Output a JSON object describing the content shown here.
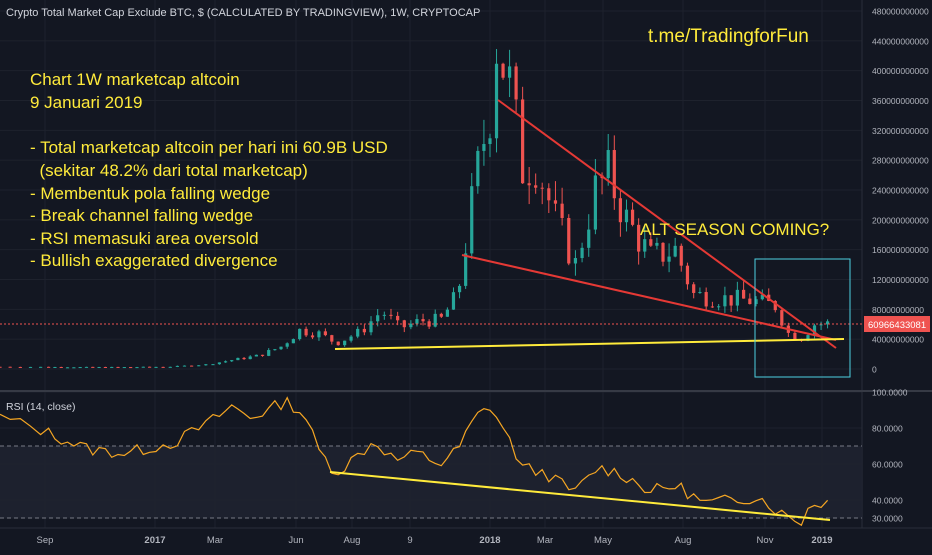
{
  "header": {
    "title": "Crypto Total Market Cap Exclude BTC, $ (CALCULATED BY TRADINGVIEW), 1W, CRYPTOCAP"
  },
  "watermark": "t.me/TradingforFun",
  "annotation_lines": [
    "Chart 1W marketcap altcoin",
    "9 Januari 2019",
    "",
    "- Total marketcap altcoin per hari ini 60.9B USD",
    "  (sekitar 48.2% dari total marketcap)",
    "- Membentuk pola falling wedge",
    "- Break channel falling wedge",
    "- RSI memasuki area oversold",
    "- Bullish exaggerated divergence"
  ],
  "callout": "ALT SEASON COMING?",
  "price_label": "60966433081",
  "rsi_label": "RSI (14, close)",
  "colors": {
    "background": "#131722",
    "up": "#26a69a",
    "down": "#ef5350",
    "annotation": "#ffeb3b",
    "wedge": "#e53935",
    "rsi_line": "#f5a623",
    "highlight_box": "#4dd0e1"
  },
  "chart_data": [
    {
      "type": "candlestick",
      "title": "Crypto Total Market Cap Exclude BTC, $ (CALCULATED BY TRADINGVIEW), 1W, CRYPTOCAP",
      "x_tick_labels": [
        "Sep",
        "2017",
        "Mar",
        "Jun",
        "Aug",
        "9",
        "2018",
        "Mar",
        "May",
        "Aug",
        "Nov",
        "2019"
      ],
      "y_tick_labels": [
        "480000000000",
        "440000000000",
        "400000000000",
        "360000000000",
        "320000000000",
        "280000000000",
        "240000000000",
        "200000000000",
        "160000000000",
        "120000000000",
        "80000000000",
        "40000000000",
        "0"
      ],
      "ylim": [
        0,
        480000000000
      ],
      "y_scale": "linear",
      "grid": true,
      "last_value": 60966433081,
      "price_waypoints": [
        {
          "date": "2016-08-01",
          "value": 3000000000
        },
        {
          "date": "2016-10-01",
          "value": 2500000000
        },
        {
          "date": "2016-12-01",
          "value": 2500000000
        },
        {
          "date": "2017-01-15",
          "value": 3000000000
        },
        {
          "date": "2017-02-20",
          "value": 6000000000
        },
        {
          "date": "2017-03-20",
          "value": 12000000000
        },
        {
          "date": "2017-04-20",
          "value": 18000000000
        },
        {
          "date": "2017-05-15",
          "value": 30000000000
        },
        {
          "date": "2017-06-05",
          "value": 52000000000
        },
        {
          "date": "2017-06-25",
          "value": 48000000000
        },
        {
          "date": "2017-07-15",
          "value": 35000000000
        },
        {
          "date": "2017-08-10",
          "value": 50000000000
        },
        {
          "date": "2017-09-01",
          "value": 78000000000
        },
        {
          "date": "2017-09-20",
          "value": 55000000000
        },
        {
          "date": "2017-10-15",
          "value": 65000000000
        },
        {
          "date": "2017-11-05",
          "value": 65000000000
        },
        {
          "date": "2017-11-25",
          "value": 100000000000
        },
        {
          "date": "2017-12-15",
          "value": 250000000000
        },
        {
          "date": "2018-01-01",
          "value": 350000000000
        },
        {
          "date": "2018-01-08",
          "value": 440000000000
        },
        {
          "date": "2018-01-22",
          "value": 380000000000
        },
        {
          "date": "2018-02-05",
          "value": 270000000000
        },
        {
          "date": "2018-02-19",
          "value": 280000000000
        },
        {
          "date": "2018-03-12",
          "value": 200000000000
        },
        {
          "date": "2018-04-02",
          "value": 140000000000
        },
        {
          "date": "2018-04-23",
          "value": 240000000000
        },
        {
          "date": "2018-05-07",
          "value": 260000000000
        },
        {
          "date": "2018-05-28",
          "value": 200000000000
        },
        {
          "date": "2018-06-25",
          "value": 150000000000
        },
        {
          "date": "2018-07-23",
          "value": 160000000000
        },
        {
          "date": "2018-08-13",
          "value": 100000000000
        },
        {
          "date": "2018-09-10",
          "value": 95000000000
        },
        {
          "date": "2018-10-15",
          "value": 92000000000
        },
        {
          "date": "2018-11-12",
          "value": 85000000000
        },
        {
          "date": "2018-11-26",
          "value": 48000000000
        },
        {
          "date": "2018-12-10",
          "value": 42000000000
        },
        {
          "date": "2018-12-24",
          "value": 60000000000
        },
        {
          "date": "2019-01-07",
          "value": 60966433081
        }
      ]
    },
    {
      "type": "line",
      "title": "RSI (14, close)",
      "y_tick_labels": [
        "100.0000",
        "80.0000",
        "60.0000",
        "40.0000",
        "30.0000"
      ],
      "ylim": [
        25,
        100
      ],
      "reference_lines": [
        70,
        30
      ],
      "rsi_waypoints": [
        {
          "date": "2016-08-01",
          "value": 86
        },
        {
          "date": "2016-09-10",
          "value": 76
        },
        {
          "date": "2016-10-20",
          "value": 68
        },
        {
          "date": "2016-12-01",
          "value": 66
        },
        {
          "date": "2017-01-20",
          "value": 72
        },
        {
          "date": "2017-02-20",
          "value": 82
        },
        {
          "date": "2017-03-20",
          "value": 92
        },
        {
          "date": "2017-04-10",
          "value": 86
        },
        {
          "date": "2017-05-01",
          "value": 90
        },
        {
          "date": "2017-05-20",
          "value": 95
        },
        {
          "date": "2017-06-10",
          "value": 88
        },
        {
          "date": "2017-06-25",
          "value": 68
        },
        {
          "date": "2017-07-15",
          "value": 55
        },
        {
          "date": "2017-08-05",
          "value": 64
        },
        {
          "date": "2017-08-25",
          "value": 73
        },
        {
          "date": "2017-09-15",
          "value": 62
        },
        {
          "date": "2017-10-10",
          "value": 66
        },
        {
          "date": "2017-11-05",
          "value": 60
        },
        {
          "date": "2017-11-25",
          "value": 68
        },
        {
          "date": "2017-12-15",
          "value": 86
        },
        {
          "date": "2018-01-01",
          "value": 92
        },
        {
          "date": "2018-01-15",
          "value": 80
        },
        {
          "date": "2018-02-05",
          "value": 58
        },
        {
          "date": "2018-03-01",
          "value": 55
        },
        {
          "date": "2018-04-01",
          "value": 44
        },
        {
          "date": "2018-04-25",
          "value": 58
        },
        {
          "date": "2018-05-20",
          "value": 55
        },
        {
          "date": "2018-06-25",
          "value": 45
        },
        {
          "date": "2018-07-25",
          "value": 48
        },
        {
          "date": "2018-08-25",
          "value": 38
        },
        {
          "date": "2018-09-25",
          "value": 40
        },
        {
          "date": "2018-10-25",
          "value": 42
        },
        {
          "date": "2018-11-20",
          "value": 32
        },
        {
          "date": "2018-12-10",
          "value": 28
        },
        {
          "date": "2018-12-20",
          "value": 38
        },
        {
          "date": "2019-01-07",
          "value": 39
        }
      ]
    }
  ]
}
